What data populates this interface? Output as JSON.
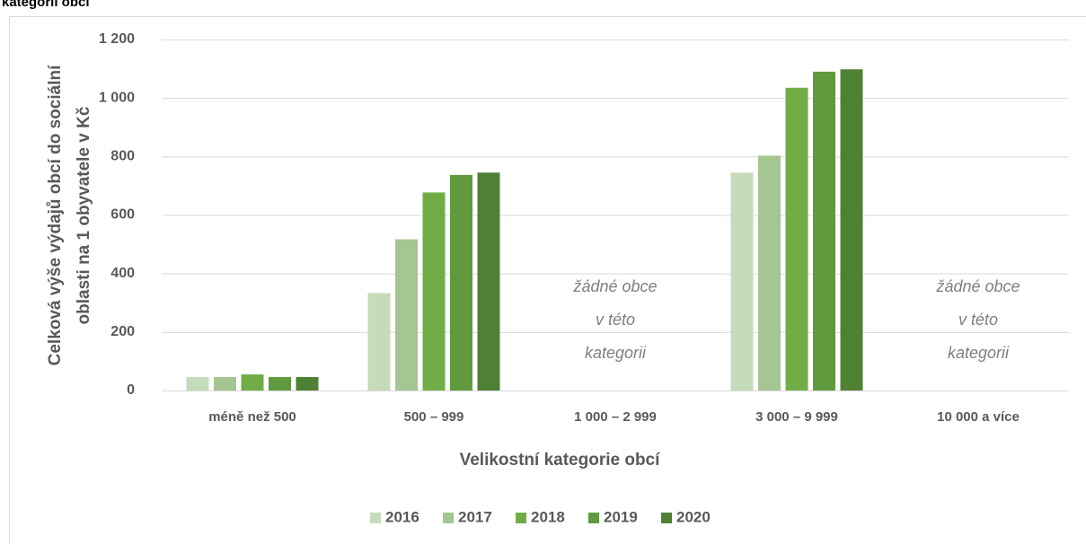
{
  "chart_data": {
    "type": "bar",
    "title": "kategorii obcí",
    "ylabel": [
      "Celková výše výdajů obcí do sociální",
      "oblasti na 1 obyvatele v Kč"
    ],
    "xlabel": "Velikostní kategorie obcí",
    "categories": [
      "méně než 500",
      "500 – 999",
      "1 000 – 2 999",
      "3 000 – 9 999",
      "10 000 a více"
    ],
    "series": [
      {
        "name": "2016",
        "color": "#c5dbb9",
        "values": [
          46,
          333,
          null,
          745,
          null
        ]
      },
      {
        "name": "2017",
        "color": "#a5c591",
        "values": [
          46,
          517,
          null,
          803,
          null
        ]
      },
      {
        "name": "2018",
        "color": "#70ad47",
        "values": [
          55,
          677,
          null,
          1035,
          null
        ]
      },
      {
        "name": "2019",
        "color": "#5f9a3e",
        "values": [
          46,
          737,
          null,
          1090,
          null
        ]
      },
      {
        "name": "2020",
        "color": "#4f8135",
        "values": [
          46,
          745,
          null,
          1098,
          null
        ]
      }
    ],
    "annotations": [
      [
        "žádné obce",
        "v této",
        "kategorii"
      ],
      [
        "žádné obce",
        "v této",
        "kategorii"
      ]
    ],
    "ylim": [
      0,
      1200
    ],
    "yticks": [
      0,
      200,
      400,
      600,
      800,
      {
        "value": 1000,
        "label": "1 000"
      },
      {
        "value": 1200,
        "label": "1 200"
      }
    ],
    "grid": true,
    "legend": "bottom"
  }
}
